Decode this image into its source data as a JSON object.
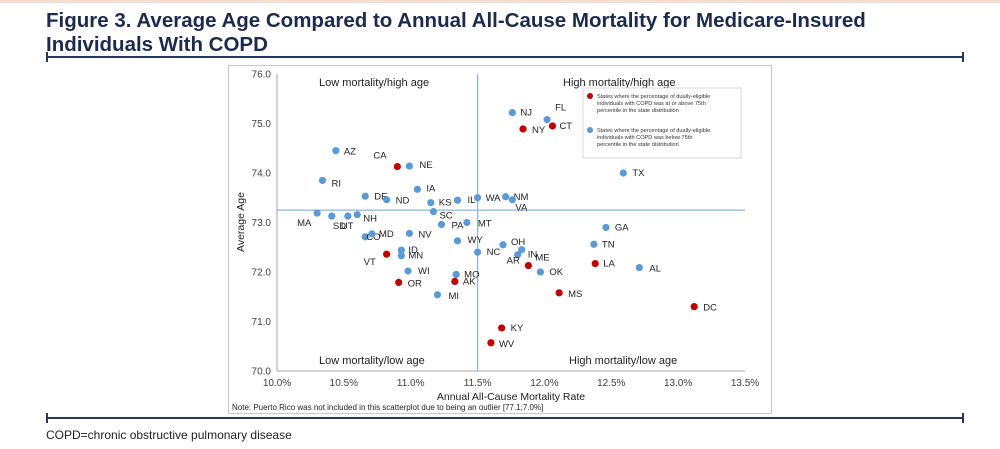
{
  "figure": {
    "title": "Figure 3. Average Age Compared to Annual All-Cause Mortality for Medicare-Insured Individuals With COPD",
    "footnote": "COPD=chronic obstructive pulmonary disease"
  },
  "chart_data": {
    "type": "scatter",
    "xlabel": "Annual All-Cause Mortality Rate",
    "ylabel": "Average Age",
    "xlim": [
      10.0,
      13.5
    ],
    "ylim": [
      70.0,
      76.0
    ],
    "x_ticks": [
      "10.0%",
      "10.5%",
      "11.0%",
      "11.5%",
      "12.0%",
      "12.5%",
      "13.0%",
      "13.5%"
    ],
    "y_ticks": [
      "70.0",
      "71.0",
      "72.0",
      "73.0",
      "74.0",
      "75.0",
      "76.0"
    ],
    "grid": false,
    "reference_lines": {
      "x": 11.5,
      "y": 73.25
    },
    "quadrant_labels": {
      "top_left": "Low mortality/high age",
      "top_right": "High mortality/high age",
      "bottom_left": "Low mortality/low age",
      "bottom_right": "High mortality/low age"
    },
    "note": "Note: Puerto Rico was not included in this scatterplot due to being an outlier [77.1;7.0%]",
    "legend": {
      "placement": "top-right",
      "entries": [
        "States where the percentage of dually-eligible individuals with COPD was at or above 75th percentile in the state distribution",
        "States where the percentage of dually-eligible individuals with COPD was below 75th percentile in the state distribution"
      ]
    },
    "colors": {
      "high": "#c00000",
      "low": "#5b9bd5",
      "ref_line": "#8fb4e3",
      "axis": "#a6a6a6"
    },
    "series": [
      {
        "group": "low",
        "points": [
          {
            "label": "NJ",
            "x": 11.76,
            "y": 75.22
          },
          {
            "label": "FL",
            "x": 12.02,
            "y": 75.08
          },
          {
            "label": "AZ",
            "x": 10.44,
            "y": 74.45
          },
          {
            "label": "NE",
            "x": 10.99,
            "y": 74.14
          },
          {
            "label": "TX",
            "x": 12.59,
            "y": 74.0
          },
          {
            "label": "RI",
            "x": 10.34,
            "y": 73.85
          },
          {
            "label": "IA",
            "x": 11.05,
            "y": 73.67
          },
          {
            "label": "DE",
            "x": 10.66,
            "y": 73.53
          },
          {
            "label": "ND",
            "x": 10.82,
            "y": 73.46
          },
          {
            "label": "KS",
            "x": 11.15,
            "y": 73.4
          },
          {
            "label": "IL",
            "x": 11.35,
            "y": 73.45
          },
          {
            "label": "WA",
            "x": 11.5,
            "y": 73.5
          },
          {
            "label": "NM",
            "x": 11.71,
            "y": 73.52
          },
          {
            "label": "VA",
            "x": 11.76,
            "y": 73.46
          },
          {
            "label": "MA",
            "x": 10.3,
            "y": 73.19
          },
          {
            "label": "SD",
            "x": 10.41,
            "y": 73.13
          },
          {
            "label": "UT",
            "x": 10.53,
            "y": 73.13
          },
          {
            "label": "NH",
            "x": 10.6,
            "y": 73.16
          },
          {
            "label": "SC",
            "x": 11.17,
            "y": 73.22
          },
          {
            "label": "PA",
            "x": 11.23,
            "y": 72.96
          },
          {
            "label": "MT",
            "x": 11.42,
            "y": 73.0
          },
          {
            "label": "GA",
            "x": 12.46,
            "y": 72.9
          },
          {
            "label": "CO",
            "x": 10.66,
            "y": 72.71
          },
          {
            "label": "MD",
            "x": 10.71,
            "y": 72.77
          },
          {
            "label": "NV",
            "x": 10.99,
            "y": 72.78
          },
          {
            "label": "WY",
            "x": 11.35,
            "y": 72.63
          },
          {
            "label": "OH",
            "x": 11.69,
            "y": 72.55
          },
          {
            "label": "IN",
            "x": 11.83,
            "y": 72.45
          },
          {
            "label": "TN",
            "x": 12.37,
            "y": 72.56
          },
          {
            "label": "ID",
            "x": 10.93,
            "y": 72.44
          },
          {
            "label": "MN",
            "x": 10.93,
            "y": 72.33
          },
          {
            "label": "NC",
            "x": 11.5,
            "y": 72.4
          },
          {
            "label": "AR",
            "x": 11.8,
            "y": 72.35
          },
          {
            "label": "AL",
            "x": 12.71,
            "y": 72.09
          },
          {
            "label": "WI",
            "x": 10.98,
            "y": 72.02
          },
          {
            "label": "MO",
            "x": 11.34,
            "y": 71.95
          },
          {
            "label": "OK",
            "x": 11.97,
            "y": 72.0
          },
          {
            "label": "MI",
            "x": 11.2,
            "y": 71.54
          }
        ]
      },
      {
        "group": "high",
        "points": [
          {
            "label": "NY",
            "x": 11.84,
            "y": 74.89
          },
          {
            "label": "CT",
            "x": 12.06,
            "y": 74.95
          },
          {
            "label": "CA",
            "x": 10.9,
            "y": 74.13
          },
          {
            "label": "VT",
            "x": 10.82,
            "y": 72.36
          },
          {
            "label": "ME",
            "x": 11.88,
            "y": 72.13
          },
          {
            "label": "LA",
            "x": 12.38,
            "y": 72.17
          },
          {
            "label": "OR",
            "x": 10.91,
            "y": 71.79
          },
          {
            "label": "AK",
            "x": 11.33,
            "y": 71.81
          },
          {
            "label": "MS",
            "x": 12.11,
            "y": 71.58
          },
          {
            "label": "DC",
            "x": 13.12,
            "y": 71.3
          },
          {
            "label": "KY",
            "x": 11.68,
            "y": 70.87
          },
          {
            "label": "WV",
            "x": 11.6,
            "y": 70.57
          }
        ]
      }
    ]
  }
}
